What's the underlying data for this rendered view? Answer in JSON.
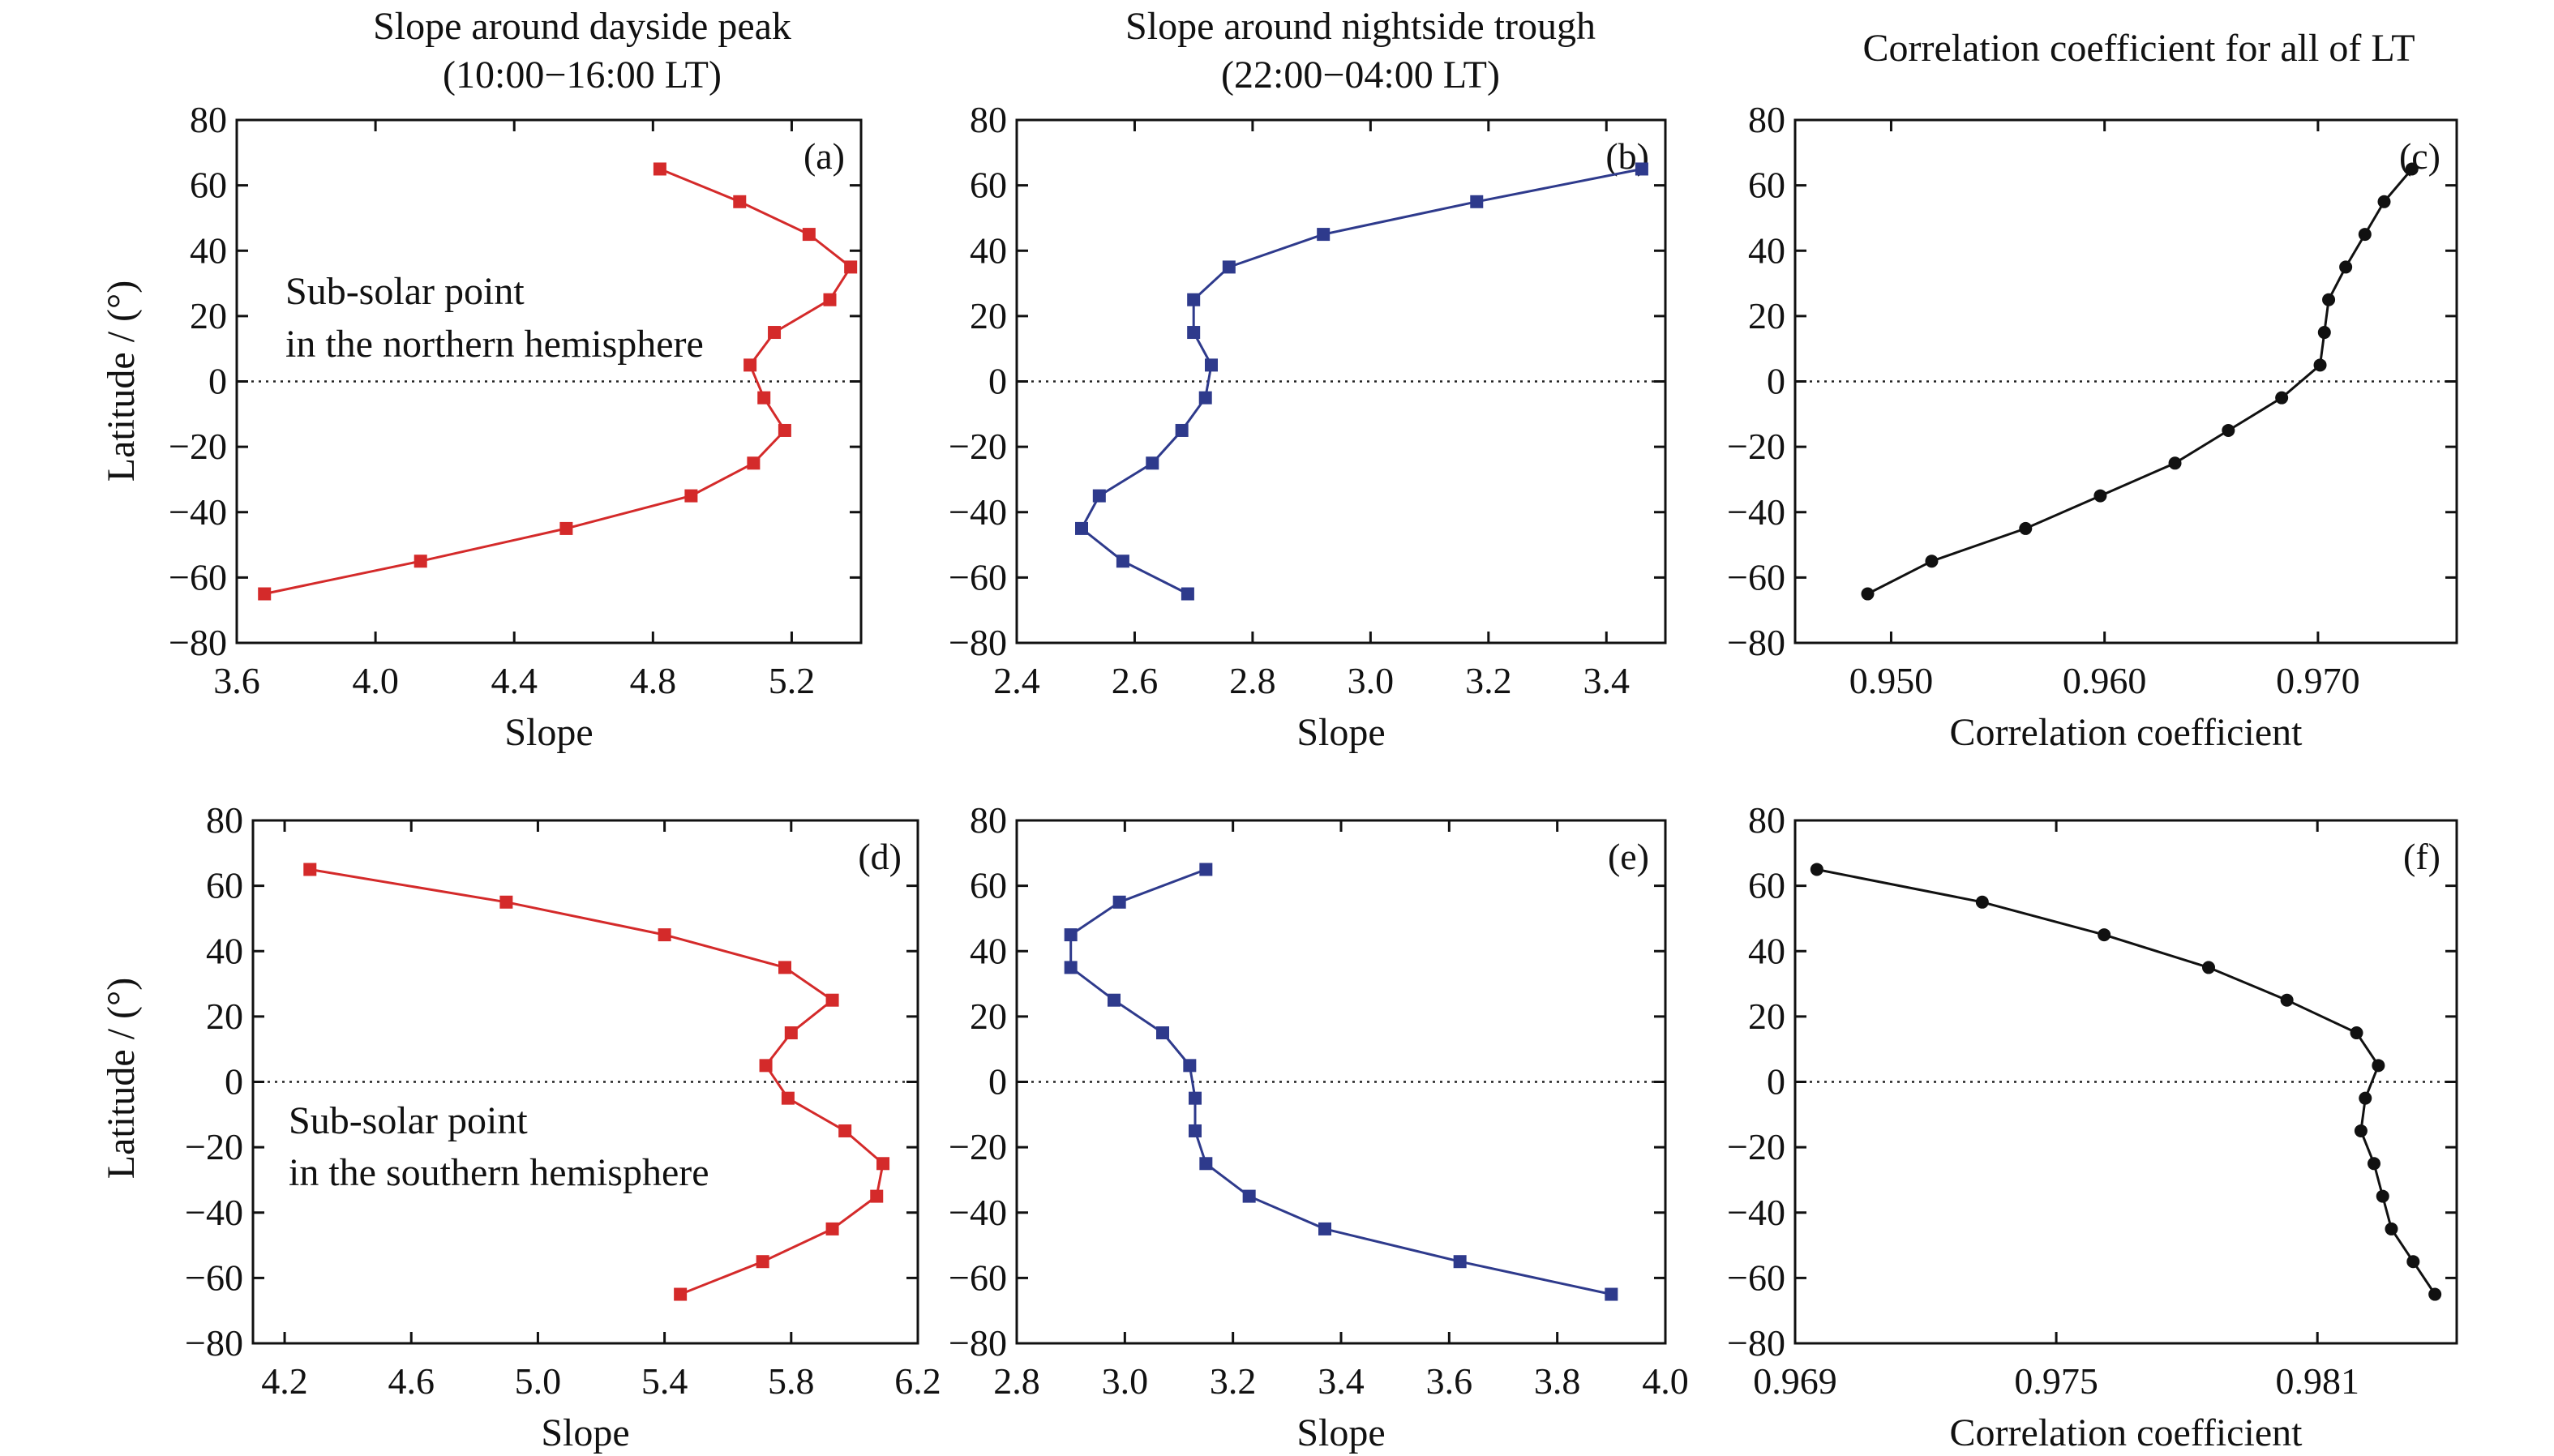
{
  "figure": {
    "column_titles": [
      {
        "line1": "Slope around dayside peak",
        "line2": "(10:00−16:00 LT)"
      },
      {
        "line1": "Slope around nightside trough",
        "line2": "(22:00−04:00 LT)"
      },
      {
        "line1": "Correlation coefficient for all of LT",
        "line2": ""
      }
    ],
    "ylabel": "Latitude / (°)",
    "annotations": {
      "north_line1": "Sub-solar point",
      "north_line2": "in the northern hemisphere",
      "south_line1": "Sub-solar point",
      "south_line2": "in the southern hemisphere"
    }
  },
  "chart_data": [
    {
      "type": "line",
      "panel": "(a)",
      "xlabel": "Slope",
      "ylabel": "Latitude / (°)",
      "xlim": [
        3.6,
        5.4
      ],
      "xticks": [
        3.6,
        4.0,
        4.4,
        4.8,
        5.2
      ],
      "xtick_labels": [
        "3.6",
        "4.0",
        "4.4",
        "4.8",
        "5.2"
      ],
      "ylim": [
        -80,
        80
      ],
      "yticks": [
        -80,
        -60,
        -40,
        -20,
        0,
        20,
        40,
        60,
        80
      ],
      "color": "#d42a2a",
      "marker": "square",
      "zero_line": true,
      "series": [
        {
          "x": [
            4.82,
            5.05,
            5.25,
            5.37,
            5.31,
            5.15,
            5.08,
            5.12,
            5.18,
            5.09,
            4.91,
            4.55,
            4.13,
            3.68
          ],
          "y": [
            65,
            55,
            45,
            35,
            25,
            15,
            5,
            -5,
            -15,
            -25,
            -35,
            -45,
            -55,
            -65
          ]
        }
      ]
    },
    {
      "type": "line",
      "panel": "(b)",
      "xlabel": "Slope",
      "ylabel": "",
      "xlim": [
        2.4,
        3.5
      ],
      "xticks": [
        2.4,
        2.6,
        2.8,
        3.0,
        3.2,
        3.4
      ],
      "xtick_labels": [
        "2.4",
        "2.6",
        "2.8",
        "3.0",
        "3.2",
        "3.4"
      ],
      "ylim": [
        -80,
        80
      ],
      "yticks": [
        -80,
        -60,
        -40,
        -20,
        0,
        20,
        40,
        60,
        80
      ],
      "color": "#2e3a8c",
      "marker": "square",
      "zero_line": true,
      "series": [
        {
          "x": [
            3.46,
            3.18,
            2.92,
            2.76,
            2.7,
            2.7,
            2.73,
            2.72,
            2.68,
            2.63,
            2.54,
            2.51,
            2.58,
            2.69
          ],
          "y": [
            65,
            55,
            45,
            35,
            25,
            15,
            5,
            -5,
            -15,
            -25,
            -35,
            -45,
            -55,
            -65
          ]
        }
      ]
    },
    {
      "type": "line",
      "panel": "(c)",
      "xlabel": "Correlation coefficient",
      "ylabel": "",
      "xlim": [
        0.9455,
        0.9765
      ],
      "xticks": [
        0.95,
        0.96,
        0.97
      ],
      "xtick_labels": [
        "0.950",
        "0.960",
        "0.970"
      ],
      "ylim": [
        -80,
        80
      ],
      "yticks": [
        -80,
        -60,
        -40,
        -20,
        0,
        20,
        40,
        60,
        80
      ],
      "color": "#111111",
      "marker": "circle",
      "zero_line": true,
      "series": [
        {
          "x": [
            0.9744,
            0.9731,
            0.9722,
            0.9713,
            0.9705,
            0.9703,
            0.9701,
            0.9683,
            0.9658,
            0.9633,
            0.9598,
            0.9563,
            0.9519,
            0.9489
          ],
          "y": [
            65,
            55,
            45,
            35,
            25,
            15,
            5,
            -5,
            -15,
            -25,
            -35,
            -45,
            -55,
            -65
          ]
        }
      ]
    },
    {
      "type": "line",
      "panel": "(d)",
      "xlabel": "Slope",
      "ylabel": "Latitude / (°)",
      "xlim": [
        4.1,
        6.2
      ],
      "xticks": [
        4.2,
        4.6,
        5.0,
        5.4,
        5.8,
        6.2
      ],
      "xtick_labels": [
        "4.2",
        "4.6",
        "5.0",
        "5.4",
        "5.8",
        "6.2"
      ],
      "ylim": [
        -80,
        80
      ],
      "yticks": [
        -80,
        -60,
        -40,
        -20,
        0,
        20,
        40,
        60,
        80
      ],
      "color": "#d42a2a",
      "marker": "square",
      "zero_line": true,
      "series": [
        {
          "x": [
            4.28,
            4.9,
            5.4,
            5.78,
            5.93,
            5.8,
            5.72,
            5.79,
            5.97,
            6.09,
            6.07,
            5.93,
            5.71,
            5.45
          ],
          "y": [
            65,
            55,
            45,
            35,
            25,
            15,
            5,
            -5,
            -15,
            -25,
            -35,
            -45,
            -55,
            -65
          ]
        }
      ]
    },
    {
      "type": "line",
      "panel": "(e)",
      "xlabel": "Slope",
      "ylabel": "",
      "xlim": [
        2.8,
        4.0
      ],
      "xticks": [
        2.8,
        3.0,
        3.2,
        3.4,
        3.6,
        3.8,
        4.0
      ],
      "xtick_labels": [
        "2.8",
        "3.0",
        "3.2",
        "3.4",
        "3.6",
        "3.8",
        "4.0"
      ],
      "ylim": [
        -80,
        80
      ],
      "yticks": [
        -80,
        -60,
        -40,
        -20,
        0,
        20,
        40,
        60,
        80
      ],
      "color": "#2e3a8c",
      "marker": "square",
      "zero_line": true,
      "series": [
        {
          "x": [
            3.15,
            2.99,
            2.9,
            2.9,
            2.98,
            3.07,
            3.12,
            3.13,
            3.13,
            3.15,
            3.23,
            3.37,
            3.62,
            3.9
          ],
          "y": [
            65,
            55,
            45,
            35,
            25,
            15,
            5,
            -5,
            -15,
            -25,
            -35,
            -45,
            -55,
            -65
          ]
        }
      ]
    },
    {
      "type": "line",
      "panel": "(f)",
      "xlabel": "Correlation coefficient",
      "ylabel": "",
      "xlim": [
        0.969,
        0.9842
      ],
      "xticks": [
        0.969,
        0.975,
        0.981
      ],
      "xtick_labels": [
        "0.969",
        "0.975",
        "0.981"
      ],
      "ylim": [
        -80,
        80
      ],
      "yticks": [
        -80,
        -60,
        -40,
        -20,
        0,
        20,
        40,
        60,
        80
      ],
      "color": "#111111",
      "marker": "circle",
      "zero_line": true,
      "series": [
        {
          "x": [
            0.9695,
            0.9733,
            0.9761,
            0.9785,
            0.9803,
            0.9819,
            0.9824,
            0.9821,
            0.982,
            0.9823,
            0.9825,
            0.9827,
            0.9832,
            0.9837
          ],
          "y": [
            65,
            55,
            45,
            35,
            25,
            15,
            5,
            -5,
            -15,
            -25,
            -35,
            -45,
            -55,
            -65
          ]
        }
      ]
    }
  ]
}
